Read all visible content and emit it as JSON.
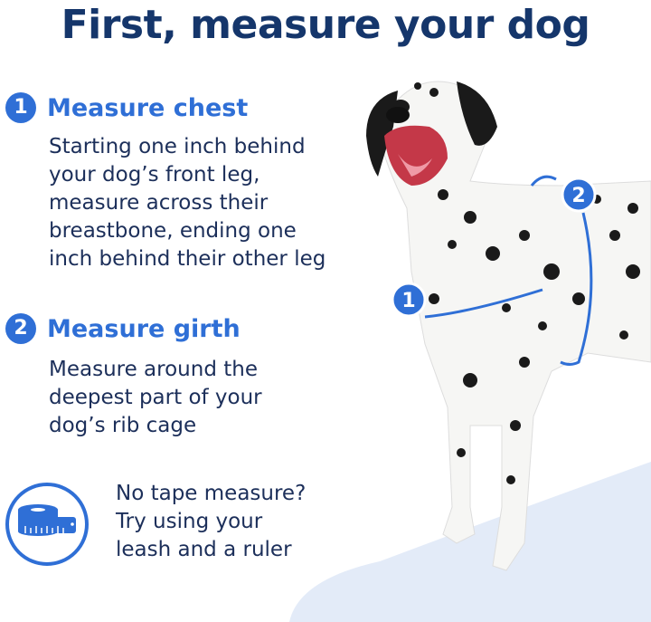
{
  "title": "First, measure your dog",
  "steps": [
    {
      "number": "1",
      "heading": "Measure chest",
      "lines": [
        "Starting one inch behind",
        "your dog’s front leg,",
        "measure across their",
        "breastbone, ending one",
        "inch behind their other leg"
      ]
    },
    {
      "number": "2",
      "heading": "Measure girth",
      "lines": [
        "Measure around the",
        "deepest part of your",
        "dog’s rib cage"
      ]
    }
  ],
  "tip": {
    "icon": "tape-measure-icon",
    "lines": [
      "No tape measure?",
      "Try using your",
      "leash and a ruler"
    ]
  },
  "colors": {
    "title": "#15366b",
    "accent": "#2f6fd6",
    "text": "#1c2f5a",
    "floor": "#e3ebf8"
  }
}
